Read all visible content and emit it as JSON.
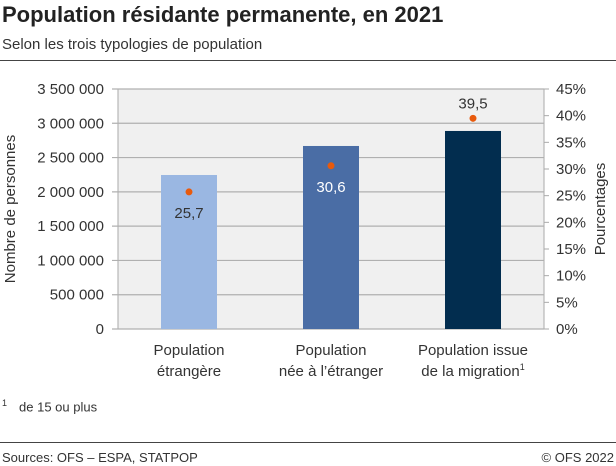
{
  "header": {
    "title": "Population résidante permanente, en 2021",
    "subtitle": "Selon les trois typologies de population"
  },
  "footnote": {
    "marker": "1",
    "text": "de 15 ou plus"
  },
  "footer": {
    "sources": "Sources: OFS – ESPA, STATPOP",
    "copyright": "© OFS 2022"
  },
  "chart_data": {
    "type": "bar",
    "categories": [
      [
        "Population",
        "étrangère"
      ],
      [
        "Population",
        "née à l’étranger"
      ],
      [
        "Population issue",
        "de la migration"
      ]
    ],
    "category_superscripts": [
      "",
      "",
      "1"
    ],
    "series": [
      {
        "axis": "left",
        "type": "bar",
        "values": [
          2246000,
          2669000,
          2888000
        ],
        "colors": [
          "#9ab7e2",
          "#4a6da5",
          "#022d4f"
        ]
      },
      {
        "axis": "right",
        "type": "scatter",
        "values": [
          25.7,
          30.6,
          39.5
        ],
        "labels": [
          "25,7",
          "30,6",
          "39,5"
        ],
        "color": "#e85a0c"
      }
    ],
    "ylabel": "Nombre de personnes",
    "ylabel_right": "Pourcentages",
    "ylim": [
      0,
      3500000
    ],
    "ylim_right": [
      0,
      45
    ],
    "yticks": [
      "0",
      "500 000",
      "1 000 000",
      "1 500 000",
      "2 000 000",
      "2 500 000",
      "3 000 000",
      "3 500 000"
    ],
    "yticks_right": [
      "0%",
      "5%",
      "10%",
      "15%",
      "20%",
      "25%",
      "30%",
      "35%",
      "40%",
      "45%"
    ],
    "grid": true,
    "plot_background": "#f0f0f0"
  }
}
